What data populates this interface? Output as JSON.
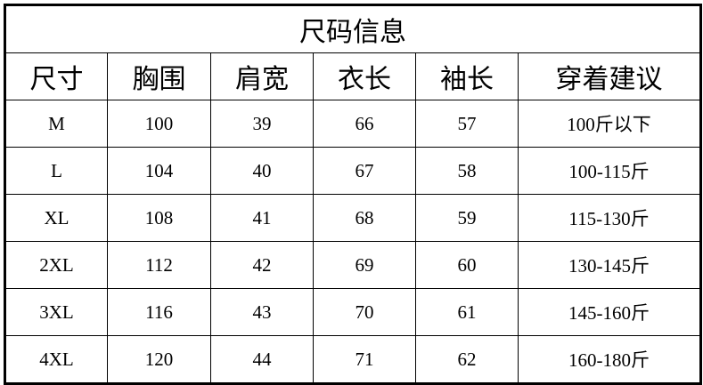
{
  "title": "尺码信息",
  "headers": [
    "尺寸",
    "胸围",
    "肩宽",
    "衣长",
    "袖长",
    "穿着建议"
  ],
  "rows": [
    [
      "M",
      "100",
      "39",
      "66",
      "57",
      "100斤以下"
    ],
    [
      "L",
      "104",
      "40",
      "67",
      "58",
      "100-115斤"
    ],
    [
      "XL",
      "108",
      "41",
      "68",
      "59",
      "115-130斤"
    ],
    [
      "2XL",
      "112",
      "42",
      "69",
      "60",
      "130-145斤"
    ],
    [
      "3XL",
      "116",
      "43",
      "70",
      "61",
      "145-160斤"
    ],
    [
      "4XL",
      "120",
      "44",
      "71",
      "62",
      "160-180斤"
    ]
  ]
}
